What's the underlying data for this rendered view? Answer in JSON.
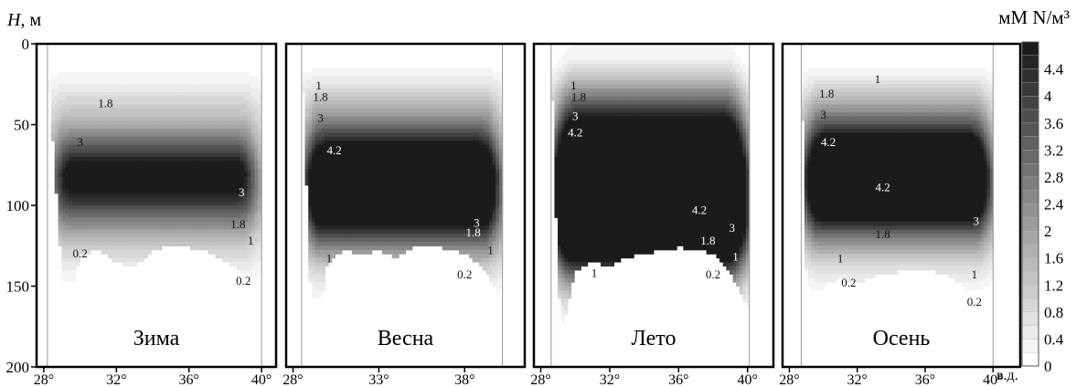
{
  "y_axis_label_italic": "H",
  "y_axis_label_rest": ", м",
  "units_label": "мМ N/м³",
  "x_unit_label": "в.д.",
  "y_ticks": [
    0,
    50,
    100,
    150,
    200
  ],
  "colorbar": {
    "ticks": [
      0,
      0.4,
      0.8,
      1.2,
      1.6,
      2,
      2.4,
      2.8,
      3.2,
      3.6,
      4,
      4.4
    ],
    "min": 0,
    "max": 4.8,
    "levels": 24
  },
  "chart_data": [
    {
      "type": "heatmap",
      "title": "Зима",
      "x_ticks": [
        "28°",
        "32°",
        "36°",
        "40°"
      ],
      "x_tick_values": [
        28,
        32,
        36,
        40
      ],
      "xlim": [
        27.6,
        40.8
      ],
      "ylim": [
        0,
        200
      ],
      "data_x_range": [
        28.2,
        40
      ],
      "bottom_profile": [
        [
          28.2,
          15
        ],
        [
          28.5,
          60
        ],
        [
          29.2,
          175
        ],
        [
          30,
          130
        ],
        [
          31,
          128
        ],
        [
          32,
          135
        ],
        [
          33,
          138
        ],
        [
          34,
          128
        ],
        [
          35,
          125
        ],
        [
          36,
          126
        ],
        [
          37,
          128
        ],
        [
          38,
          135
        ],
        [
          38.8,
          140
        ],
        [
          39.4,
          150
        ],
        [
          40,
          170
        ]
      ],
      "max_conc": 3.3,
      "core_depth": 80,
      "core_width": 22,
      "contour_labels": [
        {
          "text": "1.8",
          "x": 31.4,
          "y": 37
        },
        {
          "text": "3",
          "x": 30.0,
          "y": 61
        },
        {
          "text": "3",
          "x": 38.9,
          "y": 92
        },
        {
          "text": "1.8",
          "x": 38.7,
          "y": 112
        },
        {
          "text": "1",
          "x": 39.4,
          "y": 122
        },
        {
          "text": "0.2",
          "x": 30.0,
          "y": 130
        },
        {
          "text": "0.2",
          "x": 39.0,
          "y": 147
        }
      ]
    },
    {
      "type": "heatmap",
      "title": "Весна",
      "x_ticks": [
        "28°",
        "33°",
        "38°"
      ],
      "x_tick_values": [
        28,
        33,
        38
      ],
      "xlim": [
        27.6,
        41.5
      ],
      "ylim": [
        0,
        200
      ],
      "data_x_range": [
        28.5,
        40.2
      ],
      "bottom_profile": [
        [
          28.5,
          0
        ],
        [
          29,
          150
        ],
        [
          29.5,
          170
        ],
        [
          30,
          135
        ],
        [
          31,
          128
        ],
        [
          32,
          130
        ],
        [
          33,
          128
        ],
        [
          34,
          132
        ],
        [
          35,
          126
        ],
        [
          36,
          125
        ],
        [
          37,
          127
        ],
        [
          38,
          130
        ],
        [
          39,
          138
        ],
        [
          39.6,
          148
        ],
        [
          40.2,
          165
        ]
      ],
      "max_conc": 4.8,
      "core_depth": 84,
      "core_width": 28,
      "contour_labels": [
        {
          "text": "1",
          "x": 29.5,
          "y": 26
        },
        {
          "text": "1.8",
          "x": 29.6,
          "y": 33
        },
        {
          "text": "3",
          "x": 29.6,
          "y": 46
        },
        {
          "text": "4.2",
          "x": 30.4,
          "y": 66
        },
        {
          "text": "3",
          "x": 38.7,
          "y": 111
        },
        {
          "text": "1.8",
          "x": 38.5,
          "y": 117
        },
        {
          "text": "1",
          "x": 30.1,
          "y": 133
        },
        {
          "text": "1",
          "x": 39.5,
          "y": 128
        },
        {
          "text": "0.2",
          "x": 38.0,
          "y": 143
        }
      ]
    },
    {
      "type": "heatmap",
      "title": "Лето",
      "x_ticks": [
        "28°",
        "32°",
        "36°",
        "40°"
      ],
      "x_tick_values": [
        28,
        32,
        36,
        40
      ],
      "xlim": [
        27.6,
        41.5
      ],
      "ylim": [
        0,
        200
      ],
      "data_x_range": [
        28.6,
        40.1
      ],
      "bottom_profile": [
        [
          28.6,
          0
        ],
        [
          29,
          150
        ],
        [
          29.3,
          175
        ],
        [
          30,
          140
        ],
        [
          31,
          135
        ],
        [
          32,
          138
        ],
        [
          33,
          132
        ],
        [
          34,
          130
        ],
        [
          35,
          128
        ],
        [
          36,
          126
        ],
        [
          37,
          127
        ],
        [
          38,
          130
        ],
        [
          38.8,
          138
        ],
        [
          39.4,
          150
        ],
        [
          40.1,
          165
        ]
      ],
      "max_conc": 6.5,
      "core_depth": 85,
      "core_width": 50,
      "contour_labels": [
        {
          "text": "1",
          "x": 29.9,
          "y": 26
        },
        {
          "text": "1.8",
          "x": 30.2,
          "y": 33
        },
        {
          "text": "3",
          "x": 30.0,
          "y": 45
        },
        {
          "text": "4.2",
          "x": 30.0,
          "y": 55
        },
        {
          "text": "4.2",
          "x": 37.2,
          "y": 103
        },
        {
          "text": "3",
          "x": 39.1,
          "y": 114
        },
        {
          "text": "1.8",
          "x": 37.7,
          "y": 122
        },
        {
          "text": "1",
          "x": 39.3,
          "y": 132
        },
        {
          "text": "1",
          "x": 31.1,
          "y": 142
        },
        {
          "text": "0.2",
          "x": 38.0,
          "y": 143
        }
      ]
    },
    {
      "type": "heatmap",
      "title": "Осень",
      "x_ticks": [
        "28°",
        "32°",
        "36°",
        "40°"
      ],
      "x_tick_values": [
        28,
        32,
        36,
        40
      ],
      "xlim": [
        27.6,
        41.6
      ],
      "ylim": [
        0,
        200
      ],
      "data_x_range": [
        28.7,
        40.0
      ],
      "bottom_profile": [
        [
          28.7,
          0
        ],
        [
          29,
          150
        ],
        [
          29.3,
          175
        ],
        [
          30,
          150
        ],
        [
          31,
          145
        ],
        [
          32,
          148
        ],
        [
          33,
          144
        ],
        [
          34,
          142
        ],
        [
          35,
          140
        ],
        [
          36,
          140
        ],
        [
          37,
          142
        ],
        [
          38,
          148
        ],
        [
          38.8,
          156
        ],
        [
          39.4,
          168
        ],
        [
          40.0,
          180
        ]
      ],
      "max_conc": 5.2,
      "core_depth": 78,
      "core_width": 28,
      "contour_labels": [
        {
          "text": "1",
          "x": 33.2,
          "y": 22
        },
        {
          "text": "1.8",
          "x": 30.2,
          "y": 31
        },
        {
          "text": "3",
          "x": 30.0,
          "y": 44
        },
        {
          "text": "4.2",
          "x": 30.3,
          "y": 61
        },
        {
          "text": "4.2",
          "x": 33.5,
          "y": 89
        },
        {
          "text": "1.8",
          "x": 33.5,
          "y": 118
        },
        {
          "text": "3",
          "x": 39.0,
          "y": 110
        },
        {
          "text": "1",
          "x": 31.0,
          "y": 133
        },
        {
          "text": "1",
          "x": 38.9,
          "y": 143
        },
        {
          "text": "0.2",
          "x": 31.5,
          "y": 148
        },
        {
          "text": "0.2",
          "x": 38.9,
          "y": 160
        }
      ]
    }
  ]
}
